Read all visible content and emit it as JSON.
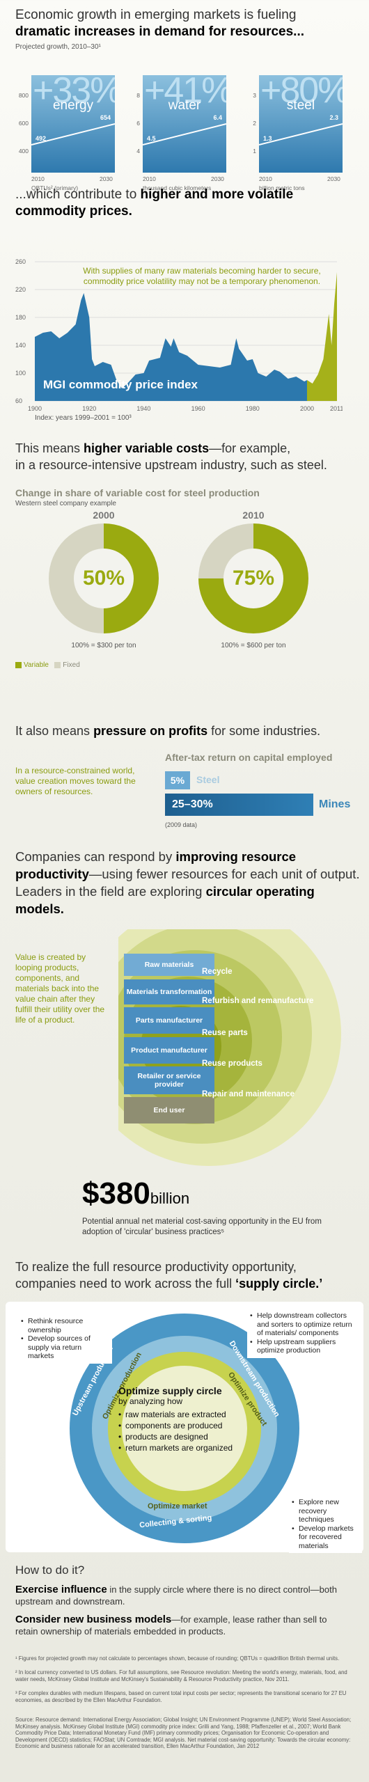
{
  "s1": {
    "line1": "Economic growth in emerging markets is fueling",
    "line2": "dramatic increases in demand for resources...",
    "sub": "Projected growth, 2010–30¹",
    "boxes": [
      {
        "pct": "+33%",
        "name": "energy",
        "ticks": [
          "800",
          "600",
          "400"
        ],
        "v1": "492",
        "v2": "654",
        "x1": "2010",
        "x2": "2030",
        "unit": "QBTUs² (primary)"
      },
      {
        "pct": "+41%",
        "name": "water",
        "ticks": [
          "8",
          "6",
          "4"
        ],
        "v1": "4.5",
        "v2": "6.4",
        "x1": "2010",
        "x2": "2030",
        "unit": "thousand cubic kilometers"
      },
      {
        "pct": "+80%",
        "name": "steel",
        "ticks": [
          "3",
          "2",
          "1"
        ],
        "v1": "1.3",
        "v2": "2.3",
        "x1": "2010",
        "x2": "2030",
        "unit": "billion metric tons"
      }
    ]
  },
  "s2": {
    "line1": "...which contribute to ",
    "line1b": "higher and more volatile",
    "line2": "commodity prices.",
    "note": "With supplies of many raw materials becoming harder to secure, commodity price volatility may not be a temporary phenomenon.",
    "label": "MGI commodity price index",
    "index_note": "Index: years 1999–2001 = 100³"
  },
  "chart_data": {
    "type": "area",
    "title": "MGI commodity price index",
    "x_ticks": [
      "1900",
      "1920",
      "1940",
      "1960",
      "1980",
      "2000",
      "2011"
    ],
    "y_ticks": [
      "260",
      "220",
      "180",
      "140",
      "100",
      "60"
    ],
    "ylim": [
      60,
      260
    ],
    "xlim": [
      1900,
      2011
    ],
    "x": [
      1900,
      1903,
      1906,
      1909,
      1912,
      1915,
      1917,
      1918,
      1920,
      1921,
      1922,
      1925,
      1928,
      1930,
      1932,
      1934,
      1937,
      1940,
      1942,
      1944,
      1946,
      1948,
      1950,
      1951,
      1953,
      1956,
      1960,
      1964,
      1968,
      1972,
      1974,
      1975,
      1978,
      1980,
      1982,
      1985,
      1988,
      1990,
      1993,
      1996,
      1999,
      2000,
      2002,
      2004,
      2006,
      2008,
      2009,
      2010,
      2011
    ],
    "y": [
      152,
      158,
      160,
      150,
      158,
      170,
      205,
      215,
      180,
      120,
      110,
      116,
      112,
      90,
      78,
      85,
      98,
      100,
      118,
      120,
      122,
      150,
      138,
      150,
      130,
      125,
      112,
      110,
      108,
      112,
      150,
      135,
      118,
      120,
      100,
      95,
      105,
      102,
      92,
      95,
      88,
      90,
      85,
      98,
      120,
      185,
      140,
      200,
      245
    ]
  },
  "s3": {
    "line1": "This means ",
    "line1b": "higher variable costs",
    "line1c": "—for example,",
    "line2": "in a resource-intensive upstream industry, such as steel.",
    "ptitle": "Change in share of variable cost for steel production",
    "psub": "Western steel company example",
    "pies": [
      {
        "year": "2000",
        "pct": "50%",
        "value": 50,
        "note": "100% = $300 per ton"
      },
      {
        "year": "2010",
        "pct": "75%",
        "value": 75,
        "note": "100% = $600 per ton"
      }
    ],
    "leg_var": "Variable",
    "leg_fix": "Fixed",
    "c_var": "#9aaa10",
    "c_fix": "#d6d5c2"
  },
  "s4": {
    "line1": "It also means ",
    "line1b": "pressure on profits",
    "line1c": " for some industries.",
    "side": "In a resource-constrained world, value creation moves toward the owners of resources.",
    "btitle": "After-tax return on capital employed",
    "b1v": "5%",
    "b1l": "Steel",
    "b2v": "25–30%",
    "b2l": "Mines",
    "bnote": "(2009 data)"
  },
  "s5": {
    "l1a": "Companies can respond by ",
    "l1b": "improving resource",
    "l2a": "productivity",
    "l2b": "—using fewer resources for each unit of output.",
    "l3a": "Leaders in the field are exploring ",
    "l3b": "circular operating models.",
    "side": "Value is created by looping products, components, and materials back into the value chain after they fulfill their utility over the life of a product.",
    "ladder": [
      "Raw materials",
      "Materials transformation",
      "Parts manufacturer",
      "Product manufacturer",
      "Retailer or service provider",
      "End user"
    ],
    "loops": [
      "Recycle",
      "Refurbish and remanufacture",
      "Reuse parts",
      "Reuse products",
      "Repair and maintenance"
    ],
    "big": "$380",
    "unit": "billion",
    "bnote": "Potential annual net material cost-saving opportunity in the EU from adoption of 'circular' business practices⁵"
  },
  "s6": {
    "l1": "To realize the full resource productivity opportunity,",
    "l2": "companies need to work across the full ",
    "l2b": "‘supply circle.’",
    "left": [
      "Rethink resource ownership",
      "Develop sources of supply via return markets"
    ],
    "right_top": [
      "Help downstream collectors and sorters to optimize return of materials/ components",
      "Help upstream suppliers optimize production"
    ],
    "right_bot": [
      "Explore new recovery techniques",
      "Develop markets for recovered materials"
    ],
    "ring": {
      "up": "Upstream production",
      "down": "Downstream production",
      "collect": "Collecting & sorting",
      "opt_prod": "Optimize production",
      "opt_product": "Optimize product",
      "opt_market": "Optimize market"
    },
    "center_t": "Optimize supply circle",
    "center_s": "by analyzing how",
    "center_list": [
      "raw materials are extracted",
      "components are produced",
      "products are designed",
      "return markets are organized"
    ]
  },
  "s7": {
    "title": "How to do it?",
    "p1b": "Exercise influence",
    "p1": " in the supply circle where there is no direct control—both upstream and downstream.",
    "p2b": "Consider new business models",
    "p2": "—for example, lease rather than sell to retain ownership of materials embedded in products."
  },
  "foot": {
    "f1": "¹ Figures for projected growth may not calculate to percentages shown, because of rounding; QBTUs = quadrillion British thermal units.",
    "f2": "² In local currency converted to US dollars. For full assumptions, see Resource revolution: Meeting the world's energy, materials, food, and water needs, McKinsey Global Institute and McKinsey's Sustainability & Resource Productivity practice, Nov 2011.",
    "f3": "³ For complex durables with medium lifespans, based on current total input costs per sector; represents the transitional scenario for 27 EU economies, as described by the Ellen MacArthur Foundation.",
    "src": "Source: Resource demand: International Energy Association; Global Insight; UN Environment Programme (UNEP); World Steel Association; McKinsey analysis. McKinsey Global Institute (MGI) commodity price index: Grilli and Yang, 1988; Pfaffenzeller et al., 2007; World Bank Commodity Price Data; International Monetary Fund (IMF) primary commodity prices; Organisation for Economic Co-operation and Development (OECD) statistics; FAOStat; UN Comtrade; MGI analysis. Net material cost-saving opportunity: Towards the circular economy: Economic and business rationale for an accelerated transition, Ellen MacArthur Foundation, Jan 2012"
  }
}
